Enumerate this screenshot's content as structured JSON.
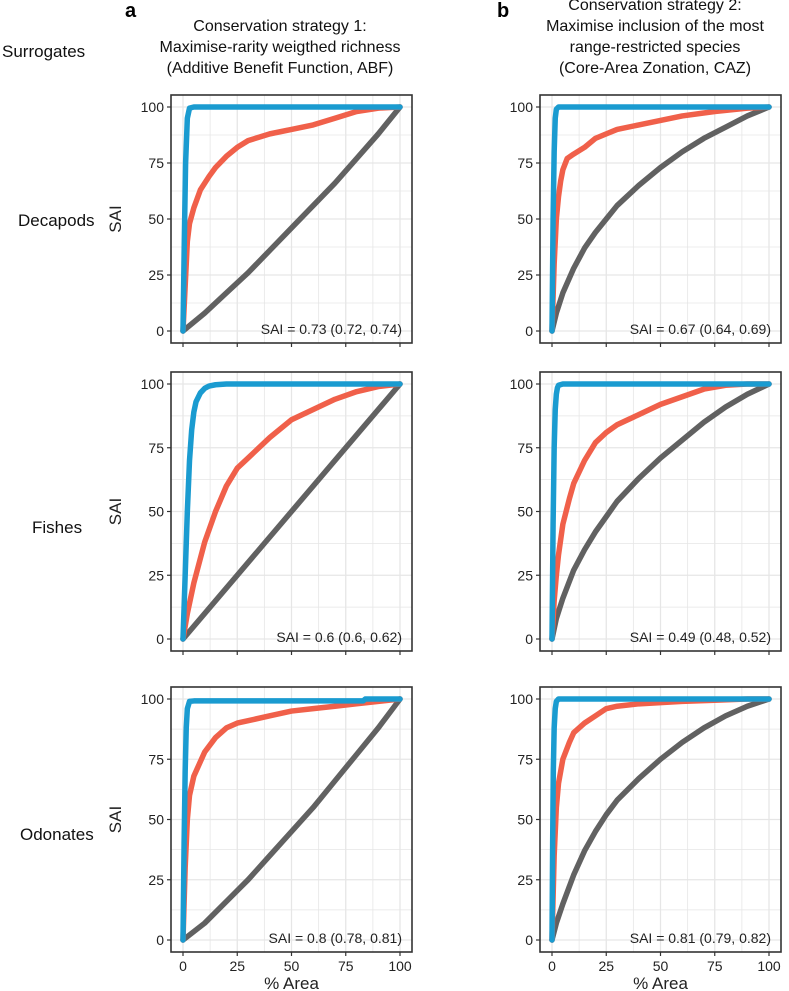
{
  "figure": {
    "columns": [
      {
        "letter": "a",
        "title_lines": [
          "Conservation strategy 1:",
          "Maximise-rarity weigthed richness",
          "(Additive Benefit Function, ABF)"
        ]
      },
      {
        "letter": "b",
        "title_lines": [
          "Conservation strategy 2:",
          "Maximise inclusion of the most",
          "range-restricted species",
          "(Core-Area Zonation, CAZ)"
        ]
      }
    ],
    "row_header": "Surrogates",
    "rows": [
      "Decapods",
      "Fishes",
      "Odonates"
    ],
    "x_axis_title": "% Area",
    "y_axis_title": "SAI"
  },
  "colors": {
    "blue": "#1a9bd0",
    "red": "#f0604a",
    "gray": "#616161",
    "panel_bg": "#ffffff",
    "grid": "#e6e6e6",
    "border": "#333333"
  },
  "chart_data": [
    {
      "type": "line",
      "panel": "a-Decapods",
      "strategy": "ABF",
      "taxon": "Decapods",
      "xlabel": "",
      "ylabel": "SAI",
      "xlim": [
        0,
        100
      ],
      "ylim": [
        0,
        100
      ],
      "xticks": [
        0,
        25,
        50,
        75,
        100
      ],
      "yticks": [
        0,
        25,
        50,
        75,
        100
      ],
      "tick_labels_x": false,
      "annotation": "SAI = 0.73 (0.72, 0.74)",
      "series": [
        {
          "name": "blue",
          "x": [
            0,
            0.6,
            1.2,
            2,
            3,
            5,
            100
          ],
          "y": [
            0,
            40,
            75,
            95,
            99.5,
            100,
            100
          ]
        },
        {
          "name": "red",
          "x": [
            0,
            1,
            2,
            3,
            5,
            8,
            12,
            15,
            20,
            25,
            30,
            40,
            50,
            60,
            70,
            80,
            90,
            100
          ],
          "y": [
            0,
            20,
            40,
            48,
            55,
            63,
            69,
            73,
            78,
            82,
            85,
            88,
            90,
            92,
            95,
            98,
            99.5,
            100
          ]
        },
        {
          "name": "gray",
          "x": [
            0,
            10,
            20,
            30,
            40,
            50,
            60,
            70,
            80,
            90,
            100
          ],
          "y": [
            0,
            8,
            17,
            26,
            36,
            46,
            56,
            66,
            77,
            88,
            100
          ]
        }
      ]
    },
    {
      "type": "line",
      "panel": "b-Decapods",
      "strategy": "CAZ",
      "taxon": "Decapods",
      "xlabel": "",
      "ylabel": "",
      "xlim": [
        0,
        100
      ],
      "ylim": [
        0,
        100
      ],
      "xticks": [
        0,
        25,
        50,
        75,
        100
      ],
      "yticks": [
        0,
        25,
        50,
        75,
        100
      ],
      "tick_labels_x": false,
      "annotation": "SAI = 0.67 (0.64, 0.69)",
      "series": [
        {
          "name": "blue",
          "x": [
            0,
            0.5,
            1,
            1.5,
            2,
            3,
            100
          ],
          "y": [
            0,
            50,
            80,
            95,
            99,
            100,
            100
          ]
        },
        {
          "name": "red",
          "x": [
            0,
            1,
            2,
            3,
            4,
            5,
            7,
            10,
            15,
            20,
            25,
            30,
            40,
            50,
            60,
            75,
            90,
            100
          ],
          "y": [
            0,
            30,
            50,
            60,
            67,
            72,
            77,
            79,
            82,
            86,
            88,
            90,
            92,
            94,
            96,
            98,
            99.5,
            100
          ]
        },
        {
          "name": "gray",
          "x": [
            0,
            2,
            5,
            10,
            15,
            20,
            25,
            30,
            40,
            50,
            60,
            70,
            80,
            90,
            100
          ],
          "y": [
            0,
            8,
            17,
            28,
            37,
            44,
            50,
            56,
            65,
            73,
            80,
            86,
            91,
            96,
            100
          ]
        }
      ]
    },
    {
      "type": "line",
      "panel": "a-Fishes",
      "strategy": "ABF",
      "taxon": "Fishes",
      "xlabel": "",
      "ylabel": "SAI",
      "xlim": [
        0,
        100
      ],
      "ylim": [
        0,
        100
      ],
      "xticks": [
        0,
        25,
        50,
        75,
        100
      ],
      "yticks": [
        0,
        25,
        50,
        75,
        100
      ],
      "tick_labels_x": false,
      "annotation": "SAI = 0.6 (0.6, 0.62)",
      "series": [
        {
          "name": "blue",
          "x": [
            0,
            1,
            2,
            3,
            4,
            5,
            6,
            8,
            10,
            12,
            15,
            20,
            25,
            100
          ],
          "y": [
            0,
            25,
            50,
            70,
            82,
            89,
            93,
            96.5,
            98.3,
            99.2,
            99.7,
            100,
            100,
            100
          ]
        },
        {
          "name": "red",
          "x": [
            0,
            2,
            5,
            10,
            15,
            20,
            25,
            30,
            40,
            50,
            60,
            70,
            80,
            90,
            100
          ],
          "y": [
            0,
            10,
            22,
            38,
            50,
            60,
            67,
            71,
            79,
            86,
            90,
            94,
            97,
            99,
            100
          ]
        },
        {
          "name": "gray",
          "x": [
            0,
            100
          ],
          "y": [
            0,
            100
          ]
        }
      ]
    },
    {
      "type": "line",
      "panel": "b-Fishes",
      "strategy": "CAZ",
      "taxon": "Fishes",
      "xlabel": "",
      "ylabel": "",
      "xlim": [
        0,
        100
      ],
      "ylim": [
        0,
        100
      ],
      "xticks": [
        0,
        25,
        50,
        75,
        100
      ],
      "yticks": [
        0,
        25,
        50,
        75,
        100
      ],
      "tick_labels_x": false,
      "annotation": "SAI = 0.49 (0.48, 0.52)",
      "series": [
        {
          "name": "blue",
          "x": [
            0,
            0.5,
            1,
            1.5,
            2,
            2.5,
            3,
            5,
            100
          ],
          "y": [
            0,
            45,
            75,
            90,
            96,
            98.5,
            99.5,
            100,
            100
          ]
        },
        {
          "name": "red",
          "x": [
            0,
            1,
            2,
            3,
            5,
            8,
            10,
            15,
            20,
            25,
            30,
            40,
            50,
            60,
            70,
            80,
            90,
            100
          ],
          "y": [
            0,
            15,
            25,
            33,
            45,
            55,
            61,
            70,
            77,
            81,
            84,
            88,
            92,
            95,
            98,
            99.5,
            100,
            100
          ]
        },
        {
          "name": "gray",
          "x": [
            0,
            2,
            5,
            10,
            15,
            20,
            25,
            30,
            40,
            50,
            60,
            70,
            80,
            90,
            100
          ],
          "y": [
            0,
            8,
            16,
            27,
            35,
            42,
            48,
            54,
            63,
            71,
            78,
            85,
            91,
            96,
            100
          ]
        }
      ]
    },
    {
      "type": "line",
      "panel": "a-Odonates",
      "strategy": "ABF",
      "taxon": "Odonates",
      "xlabel": "% Area",
      "ylabel": "SAI",
      "xlim": [
        0,
        100
      ],
      "ylim": [
        0,
        100
      ],
      "xticks": [
        0,
        25,
        50,
        75,
        100
      ],
      "yticks": [
        0,
        25,
        50,
        75,
        100
      ],
      "tick_labels_x": true,
      "annotation": "SAI = 0.8 (0.78, 0.81)",
      "series": [
        {
          "name": "blue",
          "x": [
            0,
            0.5,
            1,
            1.5,
            2,
            3,
            5,
            83,
            84,
            100
          ],
          "y": [
            0,
            40,
            70,
            88,
            96,
            99,
            99.2,
            99.2,
            100,
            100
          ]
        },
        {
          "name": "red",
          "x": [
            0,
            1,
            2,
            3,
            5,
            8,
            10,
            15,
            20,
            25,
            30,
            40,
            50,
            60,
            70,
            80,
            90,
            100
          ],
          "y": [
            0,
            30,
            50,
            60,
            68,
            74,
            78,
            84,
            88,
            90,
            91,
            93,
            95,
            96,
            97,
            98,
            99,
            100
          ]
        },
        {
          "name": "gray",
          "x": [
            0,
            10,
            20,
            30,
            40,
            50,
            60,
            70,
            80,
            90,
            100
          ],
          "y": [
            0,
            7,
            16,
            25,
            35,
            45,
            55,
            66,
            77,
            88,
            100
          ]
        }
      ]
    },
    {
      "type": "line",
      "panel": "b-Odonates",
      "strategy": "CAZ",
      "taxon": "Odonates",
      "xlabel": "% Area",
      "ylabel": "",
      "xlim": [
        0,
        100
      ],
      "ylim": [
        0,
        100
      ],
      "xticks": [
        0,
        25,
        50,
        75,
        100
      ],
      "yticks": [
        0,
        25,
        50,
        75,
        100
      ],
      "tick_labels_x": true,
      "annotation": "SAI = 0.81 (0.79, 0.82)",
      "series": [
        {
          "name": "blue",
          "x": [
            0,
            0.3,
            0.6,
            1,
            1.5,
            2,
            3,
            100
          ],
          "y": [
            0,
            40,
            70,
            88,
            96,
            99,
            100,
            100
          ]
        },
        {
          "name": "red",
          "x": [
            0,
            1,
            2,
            3,
            5,
            8,
            10,
            15,
            20,
            25,
            30,
            40,
            50,
            60,
            75,
            90,
            100
          ],
          "y": [
            0,
            35,
            55,
            65,
            75,
            82,
            86,
            90,
            93,
            96,
            97,
            98,
            98.5,
            99,
            99.5,
            100,
            100
          ]
        },
        {
          "name": "gray",
          "x": [
            0,
            2,
            5,
            10,
            15,
            20,
            25,
            30,
            40,
            50,
            60,
            70,
            80,
            90,
            100
          ],
          "y": [
            0,
            7,
            15,
            27,
            37,
            45,
            52,
            58,
            67,
            75,
            82,
            88,
            93,
            97,
            100
          ]
        }
      ]
    }
  ]
}
